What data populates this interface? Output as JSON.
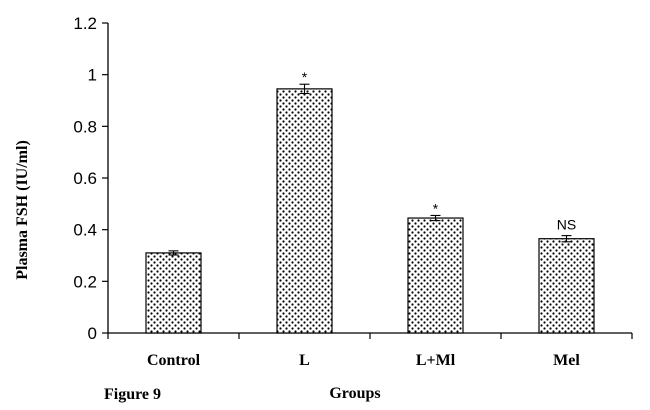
{
  "chart_data": {
    "type": "bar",
    "categories": [
      "Control",
      "L",
      "L+Ml",
      "Mel"
    ],
    "values": [
      0.31,
      0.945,
      0.445,
      0.365
    ],
    "errors": [
      0.008,
      0.018,
      0.01,
      0.012
    ],
    "annotations": [
      "",
      "*",
      "*",
      "NS"
    ],
    "xlabel": "Groups",
    "ylabel": "Plasma FSH (IU/ml)",
    "ylim": [
      0,
      1.2
    ],
    "yticks": [
      0,
      0.2,
      0.4,
      0.6,
      0.8,
      1,
      1.2
    ],
    "ytick_labels": [
      "0",
      "0.2",
      "0.4",
      "0.6",
      "0.8",
      "1",
      "1.2"
    ],
    "grid": false,
    "bar_pattern": "stippled-dots"
  },
  "figure_label": "Figure 9"
}
